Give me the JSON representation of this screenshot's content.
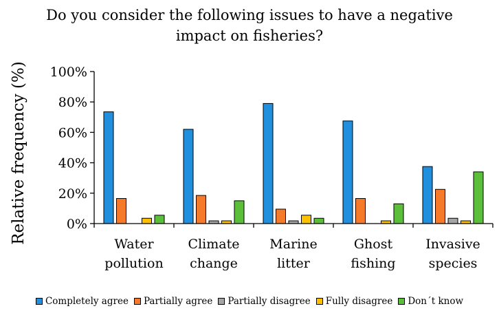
{
  "chart_data": {
    "type": "bar",
    "title_lines": [
      "Do you consider the following issues to have a negative",
      "impact on fisheries?"
    ],
    "ylabel": "Relative frequency (%)",
    "xlabel": "",
    "ylim": [
      0,
      100
    ],
    "yticks": [
      0,
      20,
      40,
      60,
      80,
      100
    ],
    "ytick_labels": [
      "0%",
      "20%",
      "40%",
      "60%",
      "80%",
      "100%"
    ],
    "grid": false,
    "legend_position": "bottom",
    "categories": [
      [
        "Water",
        "pollution"
      ],
      [
        "Climate",
        "change"
      ],
      [
        "Marine",
        "litter"
      ],
      [
        "Ghost",
        "fishing"
      ],
      [
        "Invasive",
        "species"
      ]
    ],
    "series": [
      {
        "name": "Completely agree",
        "color": "#1f8fde",
        "values": [
          73.5,
          62,
          79,
          67.5,
          37.5
        ]
      },
      {
        "name": "Partially agree",
        "color": "#f57b2a",
        "values": [
          16.5,
          18.5,
          9.5,
          16.5,
          22.5
        ]
      },
      {
        "name": "Partially disagree",
        "color": "#a5a5a5",
        "values": [
          0,
          1.8,
          1.8,
          0,
          3.5
        ]
      },
      {
        "name": "Fully disagree",
        "color": "#ffc000",
        "values": [
          3.5,
          1.8,
          5.5,
          1.8,
          1.8
        ]
      },
      {
        "name": "Don´t know",
        "color": "#5bbf3a",
        "values": [
          5.5,
          15,
          3.5,
          13,
          34
        ]
      }
    ]
  }
}
